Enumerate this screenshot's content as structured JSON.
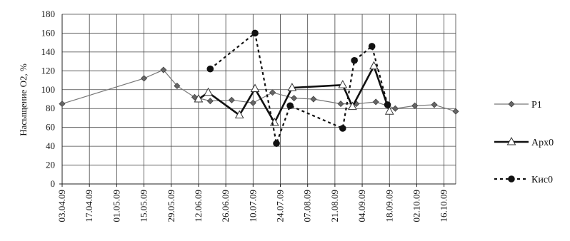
{
  "chart_data": {
    "type": "line",
    "ylabel": "Насыщение O2, %",
    "ylim": [
      0,
      180
    ],
    "yticks": [
      "0",
      "20",
      "40",
      "60",
      "80",
      "100",
      "120",
      "140",
      "160",
      "180"
    ],
    "xticks": [
      "03.04.09",
      "17.04.09",
      "01.05.09",
      "15.05.09",
      "29.05.09",
      "12.06.09",
      "26.06.09",
      "10.07.09",
      "24.07.09",
      "07.08.09",
      "21.08.09",
      "04.09.09",
      "18.09.09",
      "02.10.09",
      "16.10.09"
    ],
    "xlim": [
      "03.04.09",
      "22.10.09"
    ],
    "grid": true,
    "legend_position": "right",
    "series": [
      {
        "name": "P1",
        "style": "solid-thin",
        "marker": "diamond",
        "x": [
          "03.04.09",
          "15.05.09",
          "25.05.09",
          "01.06.09",
          "10.06.09",
          "18.06.09",
          "29.06.09",
          "10.07.09",
          "20.07.09",
          "31.07.09",
          "10.08.09",
          "24.08.09",
          "01.09.09",
          "11.09.09",
          "21.09.09",
          "01.10.09",
          "11.10.09",
          "22.10.09"
        ],
        "values": [
          85,
          112,
          121,
          104,
          92,
          88,
          89,
          86,
          97,
          91,
          90,
          85,
          85,
          87,
          80,
          83,
          84,
          77
        ]
      },
      {
        "name": "Арх0",
        "style": "solid-thick",
        "marker": "triangle",
        "x": [
          "12.06.09",
          "17.06.09",
          "03.07.09",
          "11.07.09",
          "21.07.09",
          "30.07.09",
          "25.08.09",
          "30.08.09",
          "10.09.09",
          "18.09.09"
        ],
        "values": [
          90,
          97,
          73,
          101,
          65,
          102,
          105,
          82,
          125,
          77
        ]
      },
      {
        "name": "Кис0",
        "style": "dashed",
        "marker": "circle",
        "x": [
          "18.06.09",
          "11.07.09",
          "22.07.09",
          "29.07.09",
          "25.08.09",
          "31.08.09",
          "09.09.09",
          "17.09.09"
        ],
        "values": [
          122,
          160,
          43,
          83,
          59,
          131,
          146,
          84
        ]
      }
    ]
  }
}
